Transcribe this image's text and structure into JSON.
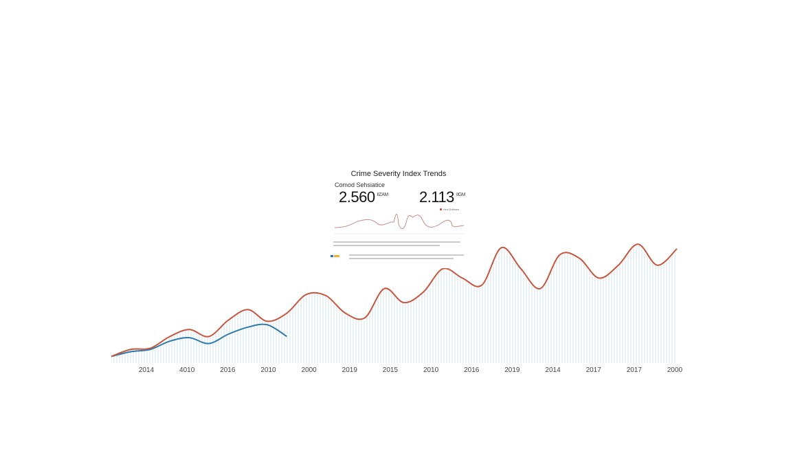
{
  "inset": {
    "title": "Crime Severity Index Trends",
    "subtitle": "Comod Sehsiatice",
    "kpi_left": {
      "value": "2.560",
      "unit": "IIZAM"
    },
    "kpi_right": {
      "value": "2.113",
      "unit": "IIGM"
    },
    "legend": "Hrot Sdtrwes",
    "colors": {
      "line": "#c98a88",
      "legend_dot": "#c0392b",
      "accent_blue": "#1f77b4",
      "accent_yellow": "#f2b134"
    }
  },
  "chart_data": {
    "type": "line",
    "title": "",
    "xlabel": "",
    "ylabel": "",
    "x_tick_labels": [
      "2014",
      "4010",
      "2016",
      "2010",
      "2000",
      "2019",
      "2015",
      "2010",
      "2016",
      "2019",
      "2014",
      "2017",
      "2017",
      "2000"
    ],
    "ylim": [
      0,
      100
    ],
    "grid": false,
    "legend": "none",
    "area_fill": "vertical-hatch",
    "series": [
      {
        "color": "#c8553d",
        "values": [
          1,
          7,
          8,
          18,
          24,
          18,
          32,
          41,
          31,
          38,
          54,
          53,
          38,
          34,
          59,
          47,
          56,
          76,
          68,
          62,
          94,
          76,
          59,
          88,
          85,
          68,
          79,
          97,
          79,
          93
        ]
      },
      {
        "color": "#2e7bab",
        "values": [
          1,
          5,
          7,
          14,
          17,
          12,
          20,
          26,
          28,
          18
        ]
      }
    ],
    "fill_color": "#cfe3ee"
  }
}
